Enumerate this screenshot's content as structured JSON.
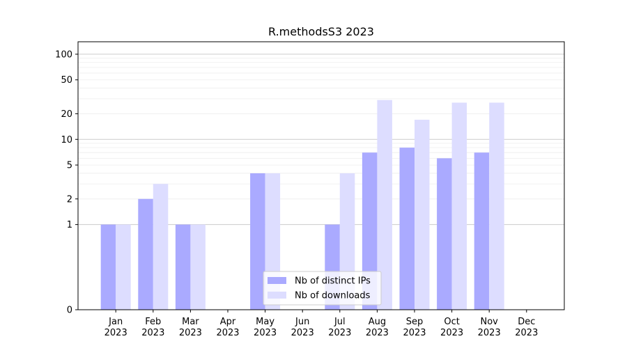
{
  "chart_data": {
    "type": "bar",
    "title": "R.methodsS3 2023",
    "xlabel": "",
    "ylabel": "",
    "yscale": "symlog",
    "ylim": [
      0,
      140
    ],
    "yticks": [
      0,
      1,
      2,
      5,
      10,
      20,
      50,
      100
    ],
    "grid": "y",
    "legend_position": "lower-center",
    "categories": [
      [
        "Jan",
        "2023"
      ],
      [
        "Feb",
        "2023"
      ],
      [
        "Mar",
        "2023"
      ],
      [
        "Apr",
        "2023"
      ],
      [
        "May",
        "2023"
      ],
      [
        "Jun",
        "2023"
      ],
      [
        "Jul",
        "2023"
      ],
      [
        "Aug",
        "2023"
      ],
      [
        "Sep",
        "2023"
      ],
      [
        "Oct",
        "2023"
      ],
      [
        "Nov",
        "2023"
      ],
      [
        "Dec",
        "2023"
      ]
    ],
    "series": [
      {
        "name": "Nb of distinct IPs",
        "color": "#aaaaff",
        "values": [
          1,
          2,
          1,
          0,
          4,
          0,
          1,
          7,
          8,
          6,
          7,
          0
        ]
      },
      {
        "name": "Nb of downloads",
        "color": "#ddddff",
        "values": [
          1,
          3,
          1,
          0,
          4,
          0,
          4,
          29,
          17,
          27,
          27,
          0
        ]
      }
    ]
  }
}
